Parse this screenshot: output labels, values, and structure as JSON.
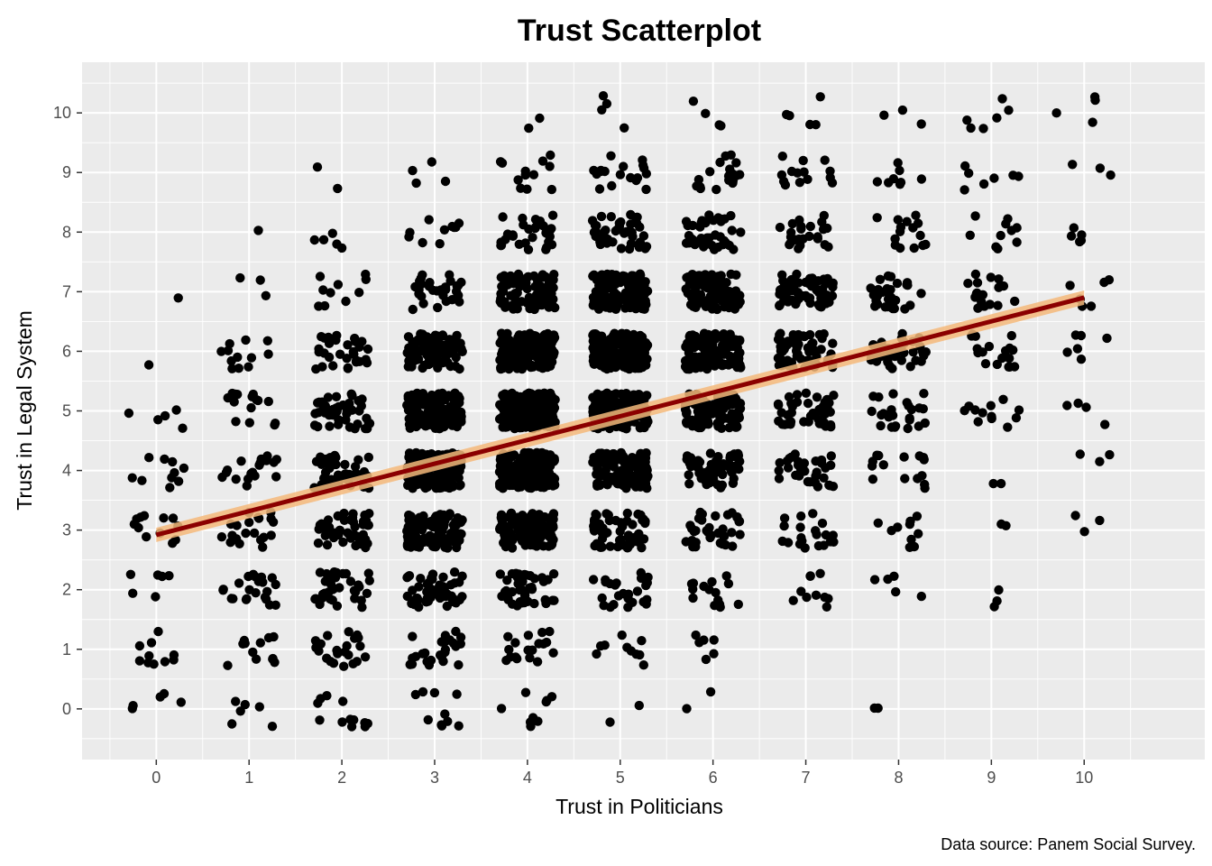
{
  "chart_data": {
    "type": "scatter",
    "title": "Trust Scatterplot",
    "xlabel": "Trust in Politicians",
    "ylabel": "Trust in Legal System",
    "caption": "Data source: Panem Social Survey.",
    "xlim": [
      -0.8,
      11.3
    ],
    "ylim": [
      -0.85,
      10.85
    ],
    "x_ticks": [
      0,
      1,
      2,
      3,
      4,
      5,
      6,
      7,
      8,
      9,
      10
    ],
    "y_ticks": [
      0,
      1,
      2,
      3,
      4,
      5,
      6,
      7,
      8,
      9,
      10
    ],
    "grid": true,
    "jitter": 0.3,
    "point_color": "#000000",
    "panel_background": "#ebebeb",
    "grid_color": "#ffffff",
    "approx_point_counts": {
      "note_x_values": [
        0,
        1,
        2,
        3,
        4,
        5,
        6,
        7,
        8,
        9,
        10
      ],
      "rows_y_0_to_10": [
        [
          5,
          6,
          12,
          10,
          9,
          2,
          2,
          0,
          2,
          0,
          0
        ],
        [
          10,
          12,
          22,
          25,
          18,
          10,
          6,
          0,
          0,
          0,
          0
        ],
        [
          6,
          22,
          35,
          55,
          40,
          25,
          15,
          10,
          5,
          3,
          0
        ],
        [
          12,
          20,
          45,
          110,
          120,
          60,
          35,
          20,
          10,
          2,
          3
        ],
        [
          10,
          18,
          55,
          150,
          200,
          120,
          55,
          35,
          15,
          2,
          3
        ],
        [
          5,
          15,
          50,
          140,
          220,
          170,
          100,
          45,
          25,
          12,
          4
        ],
        [
          1,
          12,
          30,
          90,
          180,
          170,
          110,
          60,
          40,
          18,
          6
        ],
        [
          1,
          3,
          10,
          30,
          80,
          110,
          95,
          60,
          30,
          18,
          6
        ],
        [
          0,
          1,
          5,
          10,
          30,
          45,
          40,
          25,
          15,
          10,
          5
        ],
        [
          0,
          0,
          2,
          4,
          12,
          18,
          18,
          14,
          8,
          7,
          3
        ],
        [
          0,
          0,
          0,
          0,
          2,
          4,
          4,
          5,
          3,
          6,
          4
        ]
      ]
    },
    "regression": {
      "method": "lm",
      "x_range": [
        0,
        10
      ],
      "y_at_x0": 2.92,
      "y_at_x10": 6.9,
      "line_color": "#8b0000",
      "band_color": "#f5b87a",
      "band_halfwidth": 0.12
    }
  }
}
